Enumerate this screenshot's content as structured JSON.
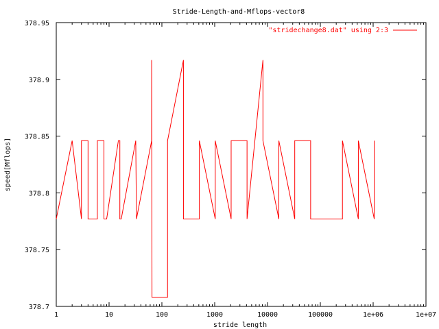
{
  "chart_data": {
    "type": "line",
    "title": "Stride-Length-and-Mflops-vector8",
    "xlabel": "stride length",
    "ylabel": "speed[Mflops]",
    "xscale": "log",
    "xlim": [
      1,
      10000000
    ],
    "ylim": [
      378.7,
      378.95
    ],
    "x_ticks": [
      1,
      10,
      100,
      1000,
      10000,
      100000,
      1000000,
      10000000
    ],
    "x_tick_labels": [
      "1",
      "10",
      "100",
      "1000",
      "10000",
      "100000",
      "1e+06",
      "1e+07"
    ],
    "y_ticks": [
      378.7,
      378.75,
      378.8,
      378.85,
      378.9,
      378.95
    ],
    "y_tick_labels": [
      "378.7",
      "378.75",
      "378.8",
      "378.85",
      "378.9",
      "378.95"
    ],
    "grid": false,
    "legend_position": "top-right",
    "series": [
      {
        "name": "\"stridechange8.dat\" using 2:3",
        "color": "#ff0000",
        "x": [
          1,
          2,
          3,
          3,
          4,
          4,
          6,
          6,
          8,
          8,
          9,
          15,
          16,
          16,
          17,
          32,
          33,
          64,
          64,
          65,
          128,
          128,
          256,
          256,
          512,
          512,
          1024,
          1024,
          2048,
          2048,
          4096,
          4096,
          8192,
          8192,
          16384,
          16384,
          32768,
          32768,
          65536,
          65536,
          131072,
          262144,
          262144,
          524288,
          524288,
          1048576,
          1048576
        ],
        "y": [
          378.777,
          378.846,
          378.777,
          378.846,
          378.846,
          378.777,
          378.777,
          378.846,
          378.846,
          378.777,
          378.777,
          378.846,
          378.846,
          378.777,
          378.777,
          378.846,
          378.777,
          378.846,
          378.917,
          378.708,
          378.708,
          378.846,
          378.917,
          378.777,
          378.777,
          378.846,
          378.777,
          378.846,
          378.777,
          378.846,
          378.846,
          378.777,
          378.917,
          378.846,
          378.777,
          378.846,
          378.777,
          378.846,
          378.846,
          378.777,
          378.777,
          378.777,
          378.846,
          378.777,
          378.846,
          378.777,
          378.846
        ]
      }
    ]
  }
}
